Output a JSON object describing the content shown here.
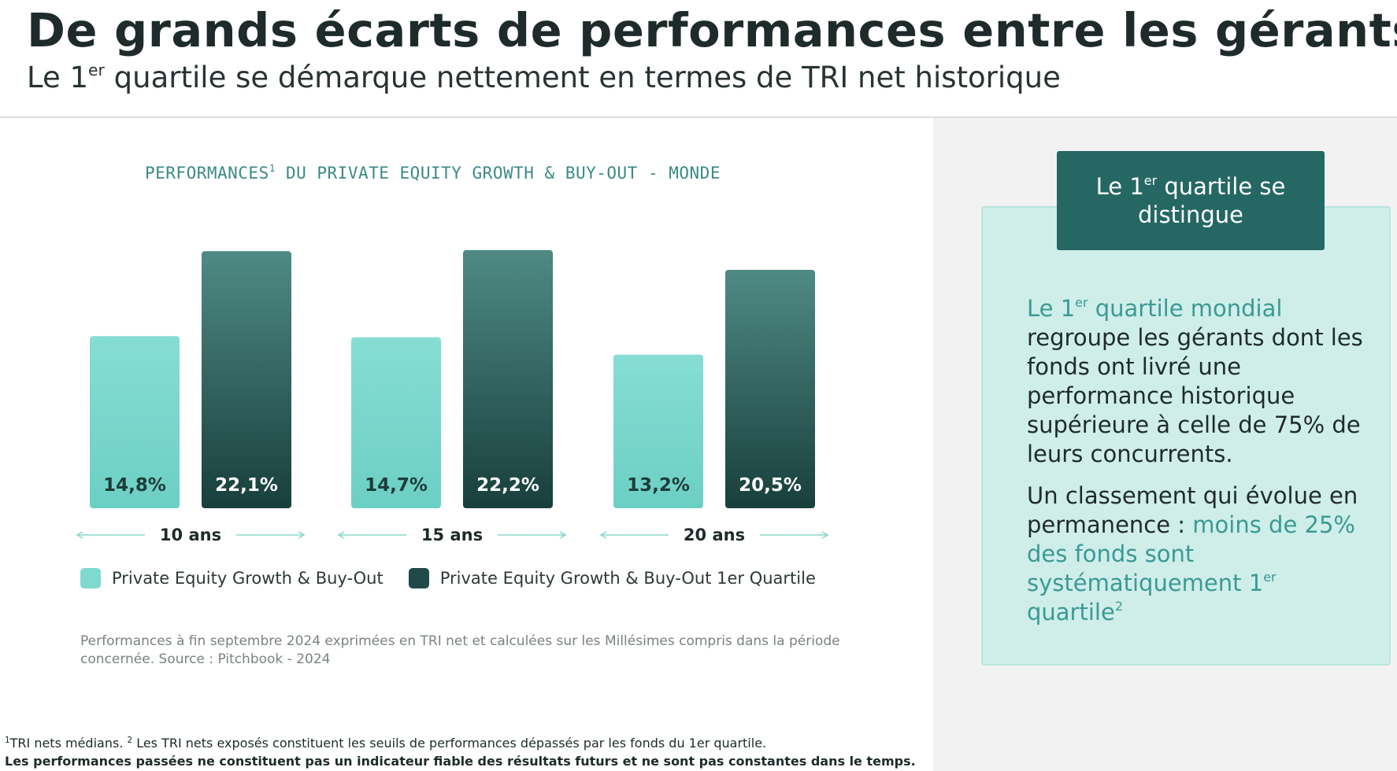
{
  "header": {
    "title": "De grands écarts de performances entre les gérants",
    "subtitle_pre": "Le 1",
    "subtitle_sup": "er",
    "subtitle_post": " quartile se démarque nettement en termes de TRI net historique"
  },
  "chart_data": {
    "type": "bar",
    "title_pre": "PERFORMANCES",
    "title_sup": "1",
    "title_post": " DU PRIVATE EQUITY GROWTH & BUY-OUT - MONDE",
    "categories": [
      "10 ans",
      "15 ans",
      "20 ans"
    ],
    "series": [
      {
        "name": "Private Equity Growth & Buy-Out",
        "values": [
          14.8,
          14.7,
          13.2
        ],
        "labels": [
          "14,8%",
          "14,7%",
          "13,2%"
        ],
        "color": "#7ed9cf"
      },
      {
        "name": "Private Equity Growth & Buy-Out 1er Quartile",
        "values": [
          22.1,
          22.2,
          20.5
        ],
        "labels": [
          "22,1%",
          "22,2%",
          "20,5%"
        ],
        "color": "#1f4a47"
      }
    ],
    "ylim": [
      0,
      23
    ],
    "xlabel": "",
    "ylabel": "",
    "grid": false,
    "note": "Performances à fin septembre 2024 exprimées en TRI net et calculées sur les Millésimes compris dans la période concernée. Source : Pitchbook - 2024"
  },
  "sidebar": {
    "header_pre": "Le 1",
    "header_sup": "er",
    "header_post": " quartile se distingue",
    "p1_accent_pre": "Le 1",
    "p1_accent_sup": "er",
    "p1_accent_post": " quartile mondial",
    "p1_text": " regroupe les gérants dont les fonds ont livré une performance historique supérieure à celle de 75% de leurs concurrents.",
    "p2_text": "Un classement qui évolue en permanence : ",
    "p2_accent": "moins de 25% des fonds sont systématiquement 1",
    "p2_accent_sup": "er",
    "p2_accent_post": " quartile",
    "p2_sup": "2"
  },
  "footnotes": {
    "sup1": "1",
    "text1": "TRI nets médians. ",
    "sup2": "2",
    "text2": " Les TRI nets exposés constituent les seuils de performances dépassés par les fonds du 1er quartile.",
    "bold": "Les performances passées ne constituent pas un indicateur fiable des résultats futurs et ne sont pas constantes dans le temps."
  },
  "colors": {
    "accent": "#3b9a93",
    "dark_teal": "#1f4a47",
    "light_teal": "#7ed9cf",
    "card_bg": "#cfeeea",
    "header_bg": "#256763"
  }
}
